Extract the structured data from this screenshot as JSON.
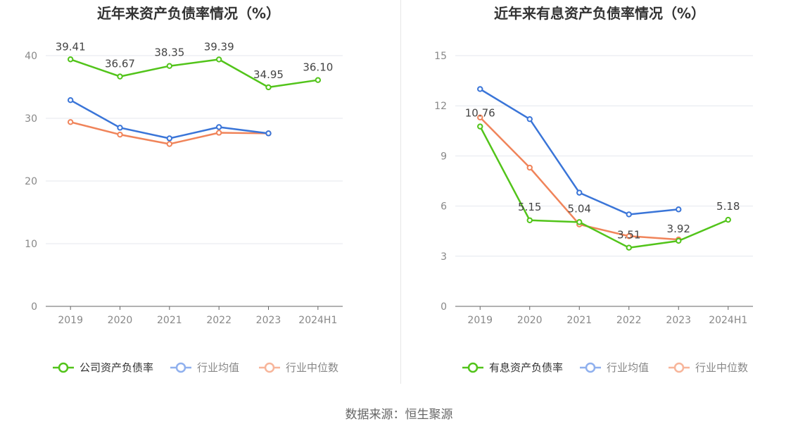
{
  "source": "数据来源：恒生聚源",
  "chart_data": [
    {
      "type": "line",
      "title": "近年来资产负债率情况（%）",
      "categories": [
        "2019",
        "2020",
        "2021",
        "2022",
        "2023",
        "2024H1"
      ],
      "ylim": [
        0,
        40
      ],
      "yticks": [
        0,
        10,
        20,
        30,
        40
      ],
      "grid": true,
      "legend_position": "bottom",
      "series": [
        {
          "name": "公司资产负债率",
          "color": "#52c41a",
          "values": [
            39.41,
            36.67,
            38.35,
            39.39,
            34.95,
            36.1
          ],
          "data_labels": [
            "39.41",
            "36.67",
            "38.35",
            "39.39",
            "34.95",
            "36.10"
          ]
        },
        {
          "name": "行业均值",
          "color": "#3a75d8",
          "values": [
            32.9,
            28.5,
            26.8,
            28.6,
            27.6,
            null
          ]
        },
        {
          "name": "行业中位数",
          "color": "#f0845a",
          "values": [
            29.4,
            27.4,
            25.9,
            27.7,
            27.6,
            null
          ]
        }
      ]
    },
    {
      "type": "line",
      "title": "近年来有息资产负债率情况（%）",
      "categories": [
        "2019",
        "2020",
        "2021",
        "2022",
        "2023",
        "2024H1"
      ],
      "ylim": [
        0,
        15
      ],
      "yticks": [
        0,
        3,
        6,
        9,
        12,
        15
      ],
      "grid": true,
      "legend_position": "bottom",
      "series": [
        {
          "name": "有息资产负债率",
          "color": "#52c41a",
          "values": [
            10.76,
            5.15,
            5.04,
            3.51,
            3.92,
            5.18
          ],
          "data_labels": [
            "10.76",
            "5.15",
            "5.04",
            "3.51",
            "3.92",
            "5.18"
          ]
        },
        {
          "name": "行业均值",
          "color": "#3a75d8",
          "values": [
            13.0,
            11.2,
            6.8,
            5.5,
            5.8,
            null
          ]
        },
        {
          "name": "行业中位数",
          "color": "#f0845a",
          "values": [
            11.3,
            8.3,
            4.9,
            4.2,
            4.0,
            null
          ]
        }
      ]
    }
  ]
}
